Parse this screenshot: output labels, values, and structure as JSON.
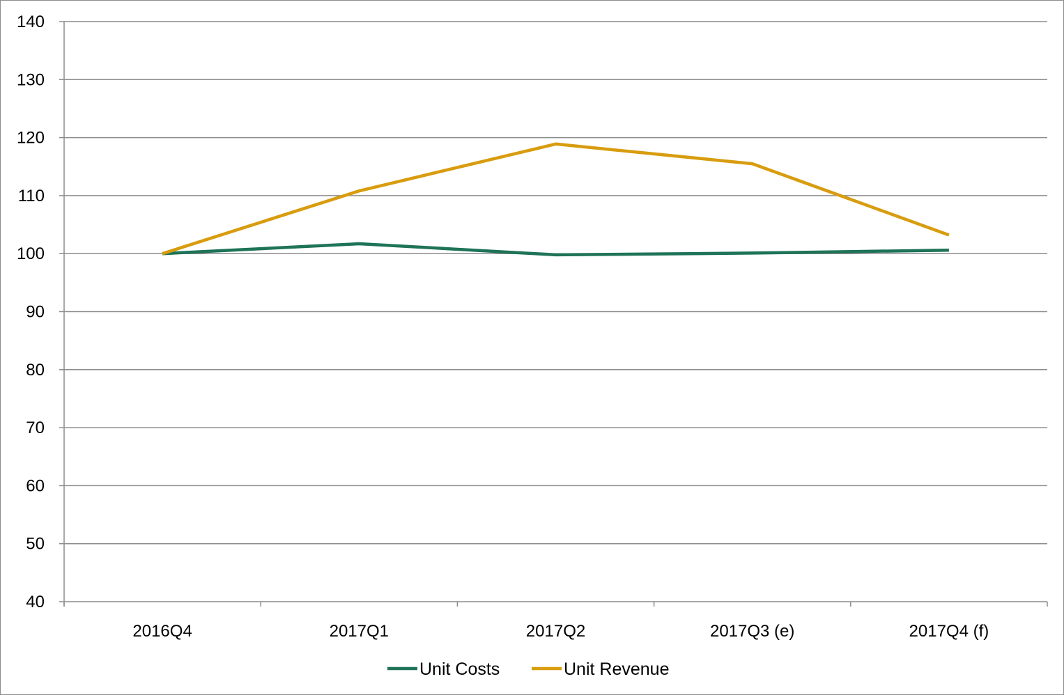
{
  "chart_data": {
    "type": "line",
    "title": "",
    "xlabel": "",
    "ylabel": "",
    "categories": [
      "2016Q4",
      "2017Q1",
      "2017Q2",
      "2017Q3 (e)",
      "2017Q4 (f)"
    ],
    "ylim": [
      40,
      140
    ],
    "yticks": [
      40,
      50,
      60,
      70,
      80,
      90,
      100,
      110,
      120,
      130,
      140
    ],
    "grid": true,
    "legend_position": "bottom",
    "series": [
      {
        "name": "Unit Costs",
        "color": "#1e7358",
        "values": [
          100,
          101.7,
          99.8,
          100.1,
          100.6
        ]
      },
      {
        "name": "Unit Revenue",
        "color": "#d89c0e",
        "values": [
          100,
          110.8,
          118.9,
          115.5,
          103.2
        ]
      }
    ]
  }
}
